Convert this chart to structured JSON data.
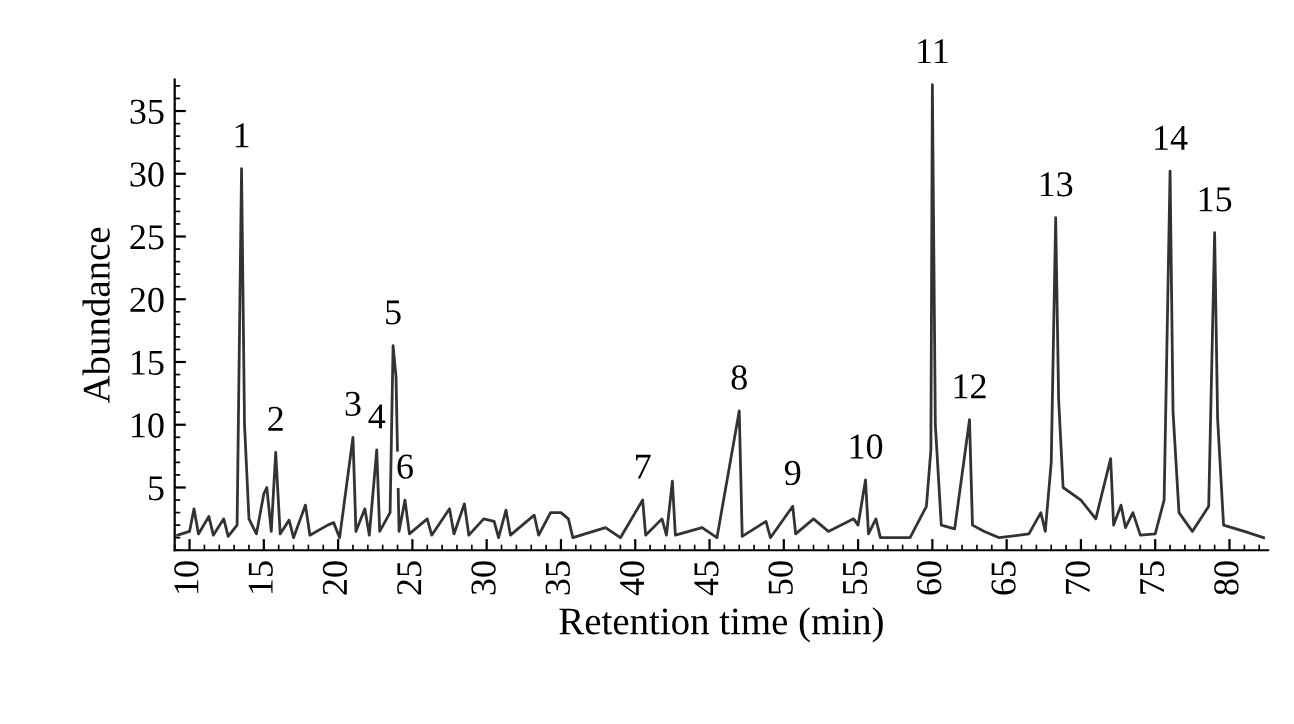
{
  "chart_data": {
    "type": "line",
    "xlabel": "Retention time (min)",
    "ylabel": "Abundance",
    "xlim": [
      9,
      82.6
    ],
    "ylim": [
      0,
      37.5
    ],
    "xticks": [
      10,
      15,
      20,
      25,
      30,
      35,
      40,
      45,
      50,
      55,
      60,
      65,
      70,
      75,
      80
    ],
    "yticks": [
      5,
      10,
      15,
      20,
      25,
      30,
      35
    ],
    "marker": "none",
    "line_style": "solid",
    "series": [
      {
        "color": "#333333",
        "x": [
          9.2,
          10,
          10.3,
          10.6,
          11.3,
          11.6,
          12.3,
          12.6,
          13.2,
          13.5,
          13.7,
          14,
          14.5,
          15,
          15.2,
          15.5,
          15.8,
          16.1,
          16.7,
          17,
          17.8,
          18.1,
          19.3,
          19.7,
          20.1,
          21,
          21.2,
          21.8,
          22.1,
          22.6,
          22.8,
          23.5,
          23.7,
          23.9,
          24.1,
          24.5,
          24.8,
          25.5,
          26,
          26.3,
          27.5,
          27.8,
          28.5,
          28.8,
          29.8,
          30.5,
          30.8,
          31.3,
          31.6,
          33.2,
          33.5,
          34.3,
          35,
          35.5,
          35.8,
          38,
          39,
          40.5,
          40.7,
          41.8,
          42.1,
          42.5,
          42.7,
          44.5,
          45.5,
          47,
          47.2,
          48.8,
          49.1,
          50.6,
          50.8,
          52,
          53,
          54.7,
          55,
          55.5,
          55.7,
          56.2,
          56.5,
          58.5,
          59.6,
          59.9,
          60,
          60.2,
          60.6,
          61.5,
          62.5,
          62.7,
          63.5,
          64.5,
          66.5,
          67.3,
          67.6,
          68,
          68.3,
          68.5,
          68.8,
          70,
          71,
          72,
          72.2,
          72.7,
          73,
          73.5,
          74,
          75,
          75.6,
          76,
          76.2,
          76.6,
          77.5,
          78.6,
          79,
          79.2,
          79.6,
          81,
          82.3
        ],
        "values": [
          1.2,
          1.5,
          3.3,
          1.3,
          2.7,
          1.2,
          2.5,
          1.1,
          2,
          30.4,
          10,
          2.5,
          1.3,
          4.5,
          5,
          1.5,
          7.8,
          1.3,
          2.4,
          1,
          3.6,
          1.2,
          2,
          2.2,
          1,
          9,
          1.5,
          3.3,
          1.2,
          8,
          1.5,
          3,
          16.3,
          13.8,
          1.5,
          4,
          1.3,
          2,
          2.5,
          1.2,
          3.3,
          1.3,
          3.7,
          1.2,
          2.5,
          2.3,
          1,
          3.2,
          1.2,
          2.8,
          1.2,
          3,
          3,
          2.5,
          1,
          1.8,
          1,
          4,
          1.2,
          2.5,
          1.2,
          5.5,
          1.2,
          1.8,
          1,
          11.1,
          1.1,
          2.3,
          1,
          3.5,
          1.3,
          2.5,
          1.5,
          2.5,
          2,
          5.6,
          1.3,
          2.5,
          1,
          1,
          3.5,
          8,
          37.1,
          10,
          2,
          1.7,
          10.4,
          2,
          1.5,
          1,
          1.3,
          3,
          1.5,
          7,
          26.5,
          12,
          5,
          4,
          2.5,
          7.3,
          2,
          3.6,
          1.8,
          3,
          1.2,
          1.3,
          4,
          30.2,
          11,
          3,
          1.5,
          3.5,
          25.3,
          10.5,
          2,
          1.5,
          1
        ]
      }
    ],
    "annotations": [
      {
        "text": "1",
        "x": 13.5,
        "y": 30.4
      },
      {
        "text": "2",
        "x": 15.8,
        "y": 7.8
      },
      {
        "text": "3",
        "x": 21,
        "y": 9
      },
      {
        "text": "4",
        "x": 22.6,
        "y": 8
      },
      {
        "text": "5",
        "x": 23.7,
        "y": 16.3
      },
      {
        "text": "6",
        "x": 24.5,
        "y": 4
      },
      {
        "text": "7",
        "x": 40.5,
        "y": 4
      },
      {
        "text": "8",
        "x": 47,
        "y": 11.1
      },
      {
        "text": "9",
        "x": 50.6,
        "y": 3.5
      },
      {
        "text": "10",
        "x": 55.5,
        "y": 5.6
      },
      {
        "text": "11",
        "x": 60,
        "y": 37.1
      },
      {
        "text": "12",
        "x": 62.5,
        "y": 10.4
      },
      {
        "text": "13",
        "x": 68.3,
        "y": 26.5
      },
      {
        "text": "14",
        "x": 76,
        "y": 30.2
      },
      {
        "text": "15",
        "x": 79,
        "y": 25.3
      }
    ]
  }
}
